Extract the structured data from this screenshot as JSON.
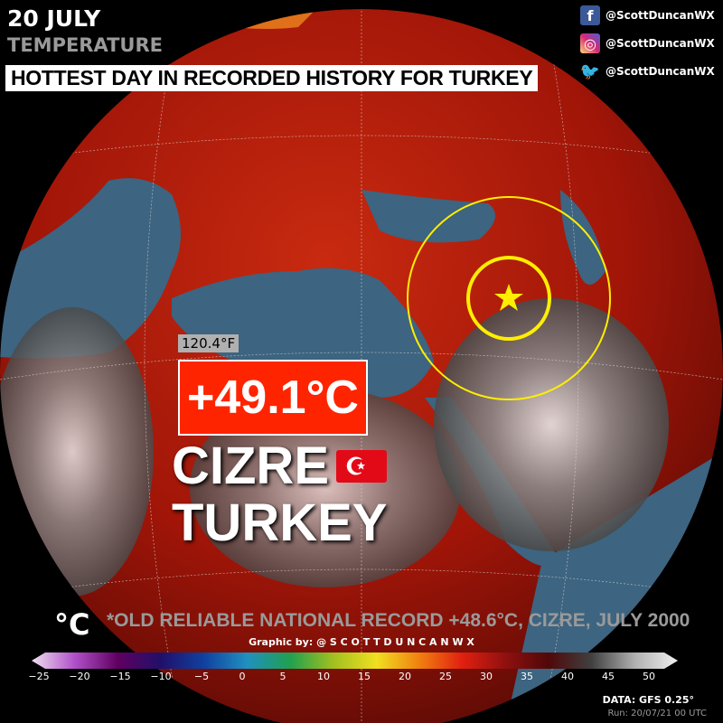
{
  "header": {
    "date": "20 JULY",
    "variable": "TEMPERATURE",
    "headline": "HOTTEST DAY IN RECORDED HISTORY FOR TURKEY"
  },
  "social": [
    {
      "icon": "facebook-icon",
      "handle": "@ScottDuncanWX",
      "color": "#3b5998"
    },
    {
      "icon": "instagram-icon",
      "handle": "@ScottDuncanWX",
      "color": "#d62976"
    },
    {
      "icon": "twitter-icon",
      "handle": "@ScottDuncanWX",
      "color": "#1da1f2"
    }
  ],
  "callout": {
    "fahrenheit": "120.4°F",
    "celsius": "+49.1°C",
    "city": "CIZRE",
    "country": "TURKEY",
    "flag": "turkey-flag"
  },
  "footer": {
    "unit": "°C",
    "note": "*OLD RELIABLE NATIONAL RECORD +48.6°C, CIZRE, JULY 2000",
    "credit": "Graphic by: @ S C O T T D U N C A N W X",
    "data_source": "DATA: GFS 0.25°",
    "run": "Run: 20/07/21 00 UTC"
  },
  "colorbar": {
    "min": -25,
    "max": 50,
    "ticks": [
      "−25",
      "−20",
      "−15",
      "−10",
      "−5",
      "0",
      "5",
      "10",
      "15",
      "20",
      "25",
      "30",
      "35",
      "40",
      "45",
      "50"
    ],
    "stops": [
      "#f0e0f0",
      "#b050c8",
      "#600060",
      "#20106a",
      "#1040a0",
      "#2090c0",
      "#20a050",
      "#a0c020",
      "#f0e020",
      "#f08010",
      "#e02010",
      "#901010",
      "#500808",
      "#404040",
      "#b0b0b0",
      "#f0f0f0"
    ]
  },
  "colors": {
    "accent_red": "#ff2400",
    "marker": "#ffee00",
    "ocean": "#3d6480",
    "land_hot": "#b01808"
  }
}
